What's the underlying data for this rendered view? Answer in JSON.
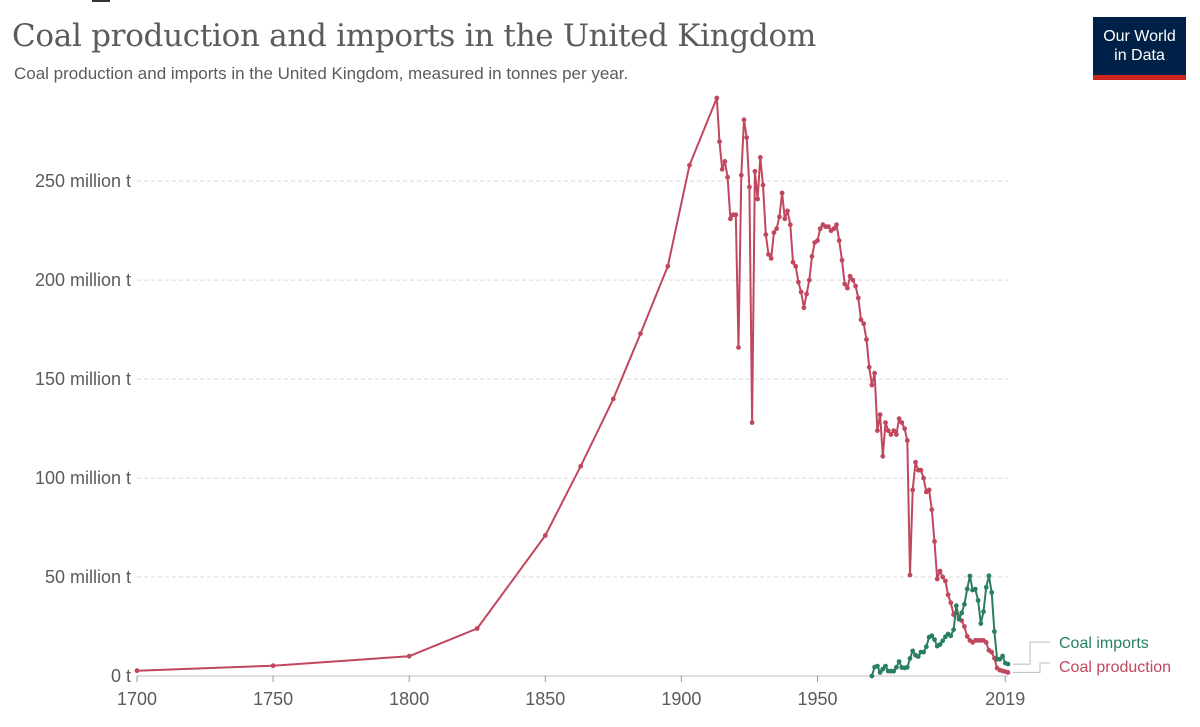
{
  "header": {
    "title": "Coal production and imports in the United Kingdom",
    "subtitle": "Coal production and imports in the United Kingdom, measured in tonnes per year.",
    "logo_line1": "Our World",
    "logo_line2": "in Data"
  },
  "colors": {
    "production": "#c1475f",
    "imports": "#2a7f5e",
    "grid": "#d9d9d9",
    "axis": "#5b5b5b",
    "logo_bg": "#002147",
    "logo_accent": "#ce261e"
  },
  "chart_data": {
    "type": "line",
    "title": "Coal production and imports in the United Kingdom",
    "subtitle": "Coal production and imports in the United Kingdom, measured in tonnes per year.",
    "xlabel": "",
    "ylabel": "",
    "xlim": [
      1700,
      2020
    ],
    "ylim": [
      0,
      290000000
    ],
    "grid": "horizontal dashed",
    "legend_position": "right, inline labels at line ends",
    "y_ticks": [
      {
        "value": 0,
        "label": "0 t"
      },
      {
        "value": 50000000,
        "label": "50 million t"
      },
      {
        "value": 100000000,
        "label": "100 million t"
      },
      {
        "value": 150000000,
        "label": "150 million t"
      },
      {
        "value": 200000000,
        "label": "200 million t"
      },
      {
        "value": 250000000,
        "label": "250 million t"
      }
    ],
    "x_ticks": [
      {
        "value": 1700,
        "label": "1700"
      },
      {
        "value": 1750,
        "label": "1750"
      },
      {
        "value": 1800,
        "label": "1800"
      },
      {
        "value": 1850,
        "label": "1850"
      },
      {
        "value": 1900,
        "label": "1900"
      },
      {
        "value": 1950,
        "label": "1950"
      },
      {
        "value": 2019,
        "label": "2019"
      }
    ],
    "series": [
      {
        "name": "Coal production",
        "color": "#c1475f",
        "points": [
          [
            1700,
            2700000
          ],
          [
            1750,
            5200000
          ],
          [
            1800,
            10000000
          ],
          [
            1825,
            24000000
          ],
          [
            1850,
            71000000
          ],
          [
            1863,
            106000000
          ],
          [
            1875,
            140000000
          ],
          [
            1885,
            173000000
          ],
          [
            1895,
            207000000
          ],
          [
            1903,
            258000000
          ],
          [
            1913,
            292000000
          ],
          [
            1914,
            270000000
          ],
          [
            1915,
            256000000
          ],
          [
            1916,
            260000000
          ],
          [
            1917,
            252000000
          ],
          [
            1918,
            231000000
          ],
          [
            1919,
            233000000
          ],
          [
            1920,
            233000000
          ],
          [
            1921,
            166000000
          ],
          [
            1922,
            253000000
          ],
          [
            1923,
            281000000
          ],
          [
            1924,
            272000000
          ],
          [
            1925,
            247000000
          ],
          [
            1926,
            128000000
          ],
          [
            1927,
            255000000
          ],
          [
            1928,
            241000000
          ],
          [
            1929,
            262000000
          ],
          [
            1930,
            248000000
          ],
          [
            1931,
            223000000
          ],
          [
            1932,
            213000000
          ],
          [
            1933,
            211000000
          ],
          [
            1934,
            224000000
          ],
          [
            1935,
            226000000
          ],
          [
            1936,
            232000000
          ],
          [
            1937,
            244000000
          ],
          [
            1938,
            231000000
          ],
          [
            1939,
            235000000
          ],
          [
            1940,
            228000000
          ],
          [
            1941,
            209000000
          ],
          [
            1942,
            207000000
          ],
          [
            1943,
            199000000
          ],
          [
            1944,
            194000000
          ],
          [
            1945,
            186000000
          ],
          [
            1946,
            193000000
          ],
          [
            1947,
            200000000
          ],
          [
            1948,
            212000000
          ],
          [
            1949,
            219000000
          ],
          [
            1950,
            220000000
          ],
          [
            1951,
            226000000
          ],
          [
            1952,
            228000000
          ],
          [
            1953,
            227000000
          ],
          [
            1954,
            227000000
          ],
          [
            1955,
            225000000
          ],
          [
            1956,
            226000000
          ],
          [
            1957,
            228000000
          ],
          [
            1958,
            220000000
          ],
          [
            1959,
            210000000
          ],
          [
            1960,
            198000000
          ],
          [
            1961,
            196000000
          ],
          [
            1962,
            202000000
          ],
          [
            1963,
            200000000
          ],
          [
            1964,
            197000000
          ],
          [
            1965,
            191000000
          ],
          [
            1966,
            180000000
          ],
          [
            1967,
            178000000
          ],
          [
            1968,
            170000000
          ],
          [
            1969,
            156000000
          ],
          [
            1970,
            147000000
          ],
          [
            1971,
            153000000
          ],
          [
            1972,
            124000000
          ],
          [
            1973,
            132000000
          ],
          [
            1974,
            111000000
          ],
          [
            1975,
            128000000
          ],
          [
            1976,
            124000000
          ],
          [
            1977,
            122000000
          ],
          [
            1978,
            124000000
          ],
          [
            1979,
            122000000
          ],
          [
            1980,
            130000000
          ],
          [
            1981,
            128000000
          ],
          [
            1982,
            125000000
          ],
          [
            1983,
            119000000
          ],
          [
            1984,
            51000000
          ],
          [
            1985,
            94000000
          ],
          [
            1986,
            108000000
          ],
          [
            1987,
            104000000
          ],
          [
            1988,
            104000000
          ],
          [
            1989,
            100000000
          ],
          [
            1990,
            93000000
          ],
          [
            1991,
            94000000
          ],
          [
            1992,
            84000000
          ],
          [
            1993,
            68000000
          ],
          [
            1994,
            49000000
          ],
          [
            1995,
            53000000
          ],
          [
            1996,
            50000000
          ],
          [
            1997,
            48000000
          ],
          [
            1998,
            41000000
          ],
          [
            1999,
            37000000
          ],
          [
            2000,
            31000000
          ],
          [
            2001,
            32000000
          ],
          [
            2002,
            30000000
          ],
          [
            2003,
            28000000
          ],
          [
            2004,
            25000000
          ],
          [
            2005,
            20000000
          ],
          [
            2006,
            18000000
          ],
          [
            2007,
            17000000
          ],
          [
            2008,
            18000000
          ],
          [
            2009,
            18000000
          ],
          [
            2010,
            18000000
          ],
          [
            2011,
            18000000
          ],
          [
            2012,
            17000000
          ],
          [
            2013,
            13000000
          ],
          [
            2014,
            12000000
          ],
          [
            2015,
            9000000
          ],
          [
            2016,
            4000000
          ],
          [
            2017,
            3000000
          ],
          [
            2018,
            2600000
          ],
          [
            2019,
            2200000
          ],
          [
            2020,
            1800000
          ]
        ]
      },
      {
        "name": "Coal imports",
        "color": "#2a7f5e",
        "points": [
          [
            1970,
            0
          ],
          [
            1971,
            4500000
          ],
          [
            1972,
            5000000
          ],
          [
            1973,
            1800000
          ],
          [
            1974,
            3500000
          ],
          [
            1975,
            5000000
          ],
          [
            1976,
            2500000
          ],
          [
            1977,
            2400000
          ],
          [
            1978,
            2400000
          ],
          [
            1979,
            4400000
          ],
          [
            1980,
            7300000
          ],
          [
            1981,
            4300000
          ],
          [
            1982,
            4100000
          ],
          [
            1983,
            4400000
          ],
          [
            1984,
            8900000
          ],
          [
            1985,
            12700000
          ],
          [
            1986,
            10500000
          ],
          [
            1987,
            9800000
          ],
          [
            1988,
            12100000
          ],
          [
            1989,
            12100000
          ],
          [
            1990,
            14800000
          ],
          [
            1991,
            19600000
          ],
          [
            1992,
            20300000
          ],
          [
            1993,
            18400000
          ],
          [
            1994,
            15100000
          ],
          [
            1995,
            15900000
          ],
          [
            1996,
            17800000
          ],
          [
            1997,
            19800000
          ],
          [
            1998,
            21200000
          ],
          [
            1999,
            20300000
          ],
          [
            2000,
            23400000
          ],
          [
            2001,
            35500000
          ],
          [
            2002,
            28700000
          ],
          [
            2003,
            31900000
          ],
          [
            2004,
            36200000
          ],
          [
            2005,
            44000000
          ],
          [
            2006,
            50500000
          ],
          [
            2007,
            43400000
          ],
          [
            2008,
            43900000
          ],
          [
            2009,
            38200000
          ],
          [
            2010,
            26500000
          ],
          [
            2011,
            32500000
          ],
          [
            2012,
            44800000
          ],
          [
            2013,
            50600000
          ],
          [
            2014,
            42200000
          ],
          [
            2015,
            22500000
          ],
          [
            2016,
            8500000
          ],
          [
            2017,
            8500000
          ],
          [
            2018,
            10100000
          ],
          [
            2019,
            6500000
          ],
          [
            2020,
            6000000
          ]
        ]
      }
    ]
  }
}
